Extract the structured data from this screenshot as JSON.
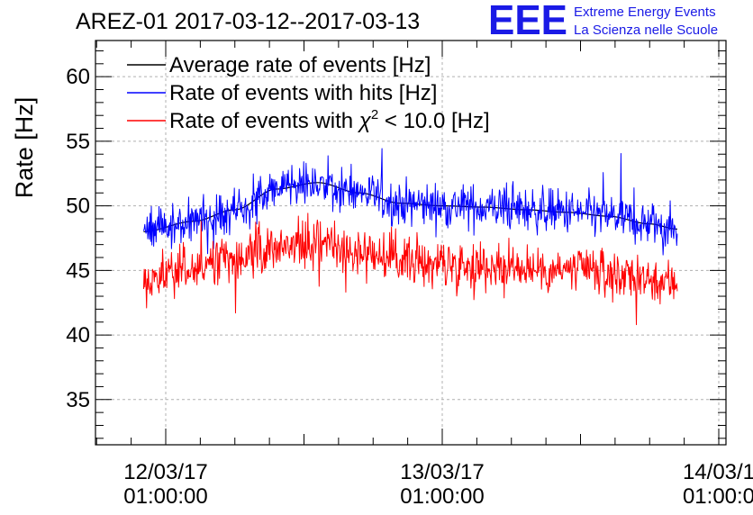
{
  "chart_data": {
    "type": "line",
    "title": "AREZ-01 2017-03-12--2017-03-13",
    "xlabel": "",
    "ylabel": "Rate [Hz]",
    "ylim": [
      31.5,
      62.8
    ],
    "xlim_days": [
      -0.27,
      2.0
    ],
    "yticks": [
      35,
      40,
      45,
      50,
      55,
      60
    ],
    "xticks": [
      {
        "day": 0,
        "date": "12/03/17",
        "time": "01:00:00"
      },
      {
        "day": 1,
        "date": "13/03/17",
        "time": "01:00:00"
      },
      {
        "day": 2,
        "date": "14/03/1",
        "time": "01:00:0"
      }
    ],
    "grid": true,
    "legend_position": "top-left",
    "series": [
      {
        "name": "Average rate of events [Hz]",
        "color": "#000000",
        "x_days": [
          -0.08,
          0.1,
          0.25,
          0.4,
          0.55,
          0.7,
          0.85,
          1.0,
          1.15,
          1.3,
          1.45,
          1.6,
          1.75,
          1.85
        ],
        "values": [
          48.0,
          48.8,
          49.7,
          51.3,
          51.8,
          51.0,
          50.2,
          50.0,
          49.9,
          49.7,
          49.5,
          49.2,
          48.6,
          48.2
        ]
      },
      {
        "name": "Rate of events with hits [Hz]",
        "color": "#0000ff",
        "x_days": [
          -0.08,
          0.1,
          0.25,
          0.4,
          0.55,
          0.7,
          0.85,
          1.0,
          1.15,
          1.3,
          1.45,
          1.6,
          1.75,
          1.85
        ],
        "values": [
          48.1,
          48.8,
          49.7,
          51.3,
          51.8,
          51.0,
          50.2,
          50.0,
          49.9,
          49.7,
          49.5,
          49.2,
          48.6,
          48.2
        ]
      },
      {
        "name": "Rate of events with χ² < 10.0 [Hz]",
        "color": "#ff0000",
        "x_days": [
          -0.08,
          0.1,
          0.25,
          0.4,
          0.55,
          0.7,
          0.85,
          1.0,
          1.15,
          1.3,
          1.45,
          1.6,
          1.75,
          1.85
        ],
        "values": [
          44.2,
          45.0,
          45.9,
          47.0,
          47.3,
          46.4,
          45.9,
          45.5,
          45.3,
          45.2,
          45.0,
          44.8,
          44.3,
          44.0
        ]
      }
    ],
    "legend_labels": {
      "avg": "Average rate of events [Hz]",
      "hits": "Rate of events with hits [Hz]",
      "chi_prefix": "Rate of events with ",
      "chi_symbol": "χ",
      "chi_exp": "2",
      "chi_suffix": " < 10.0 [Hz]"
    }
  },
  "logo": {
    "mark": "EEE",
    "line1": "Extreme Energy Events",
    "line2": "La Scienza nelle Scuole",
    "color": "#1a1ae6"
  }
}
